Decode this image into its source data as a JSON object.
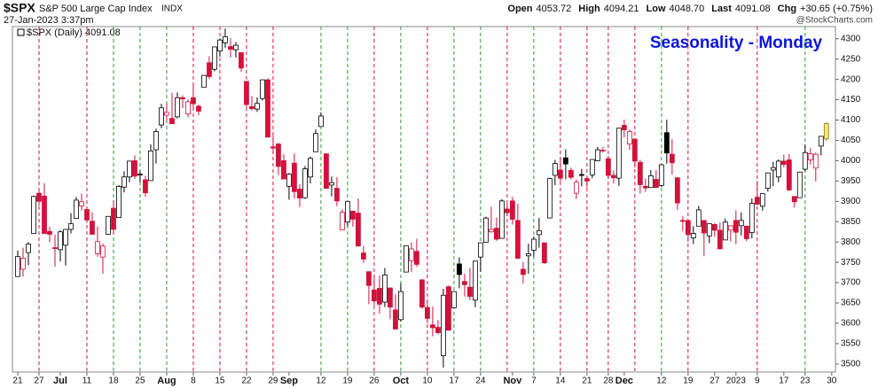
{
  "chart_data": {
    "type": "candlestick",
    "symbol": "$SPX",
    "name": "S&P 500 Large Cap Index",
    "exchange": "INDX",
    "timestamp": "27-Jan-2023 3:37pm",
    "quote": [
      {
        "label": "Open",
        "value": "4053.72"
      },
      {
        "label": "High",
        "value": "4094.21"
      },
      {
        "label": "Low",
        "value": "4048.70"
      },
      {
        "label": "Last",
        "value": "4091.08"
      },
      {
        "label": "Chg",
        "value": "+30.65 (+0.75%)"
      }
    ],
    "credit": "@StockCharts.com",
    "legend": "$SPX (Daily) 4091.08",
    "title": "Seasonality - Monday",
    "title_color": "#0a16d8",
    "up_color": "#000000",
    "down_color": "#d2123c",
    "last_color": "#f3e87a",
    "ylim": [
      3480,
      4330
    ],
    "yticks": [
      3500,
      3550,
      3600,
      3650,
      3700,
      3750,
      3800,
      3850,
      3900,
      3950,
      4000,
      4050,
      4100,
      4150,
      4200,
      4250,
      4300
    ],
    "xlim": [
      -1,
      153.7
    ],
    "xticks": [
      {
        "value": 0,
        "label": "21"
      },
      {
        "value": 4,
        "label": "27"
      },
      {
        "value": 8,
        "label": "Jul"
      },
      {
        "value": 13,
        "label": "11"
      },
      {
        "value": 18,
        "label": "18"
      },
      {
        "value": 23,
        "label": "25"
      },
      {
        "value": 28,
        "label": "Aug"
      },
      {
        "value": 33,
        "label": "8"
      },
      {
        "value": 38,
        "label": "15"
      },
      {
        "value": 43,
        "label": "22"
      },
      {
        "value": 48,
        "label": "29"
      },
      {
        "value": 51,
        "label": "Sep"
      },
      {
        "value": 57,
        "label": "12"
      },
      {
        "value": 62,
        "label": "19"
      },
      {
        "value": 67,
        "label": "26"
      },
      {
        "value": 72,
        "label": "Oct"
      },
      {
        "value": 77,
        "label": "10"
      },
      {
        "value": 82,
        "label": "17"
      },
      {
        "value": 87,
        "label": "24"
      },
      {
        "value": 93,
        "label": "Nov"
      },
      {
        "value": 97,
        "label": "7"
      },
      {
        "value": 102,
        "label": "14"
      },
      {
        "value": 107,
        "label": "21"
      },
      {
        "value": 111,
        "label": "28"
      },
      {
        "value": 114,
        "label": "Dec"
      },
      {
        "value": 121,
        "label": "12"
      },
      {
        "value": 126,
        "label": "19"
      },
      {
        "value": 131,
        "label": "27"
      },
      {
        "value": 135,
        "label": "2023"
      },
      {
        "value": 139,
        "label": "9"
      },
      {
        "value": 144,
        "label": "17"
      },
      {
        "value": 148,
        "label": "23"
      },
      {
        "value": 153,
        "label": "30"
      }
    ],
    "monday_lines": [
      {
        "value": 4,
        "color": "#d2123c"
      },
      {
        "value": 13,
        "color": "#d2123c"
      },
      {
        "value": 18,
        "color": "#2e9a2e"
      },
      {
        "value": 23,
        "color": "#2e9a2e"
      },
      {
        "value": 28,
        "color": "#2e9a2e"
      },
      {
        "value": 33,
        "color": "#d2123c"
      },
      {
        "value": 38,
        "color": "#d2123c"
      },
      {
        "value": 43,
        "color": "#d2123c"
      },
      {
        "value": 48,
        "color": "#d2123c"
      },
      {
        "value": 57,
        "color": "#2e9a2e"
      },
      {
        "value": 62,
        "color": "#2e9a2e"
      },
      {
        "value": 67,
        "color": "#d2123c"
      },
      {
        "value": 72,
        "color": "#2e9a2e"
      },
      {
        "value": 77,
        "color": "#d2123c"
      },
      {
        "value": 82,
        "color": "#2e9a2e"
      },
      {
        "value": 87,
        "color": "#2e9a2e"
      },
      {
        "value": 92,
        "color": "#d2123c"
      },
      {
        "value": 97,
        "color": "#2e9a2e"
      },
      {
        "value": 102,
        "color": "#d2123c"
      },
      {
        "value": 107,
        "color": "#d2123c"
      },
      {
        "value": 111,
        "color": "#d2123c"
      },
      {
        "value": 116,
        "color": "#d2123c"
      },
      {
        "value": 121,
        "color": "#2e9a2e"
      },
      {
        "value": 126,
        "color": "#d2123c"
      },
      {
        "value": 139,
        "color": "#d2123c"
      },
      {
        "value": 148,
        "color": "#2e9a2e"
      }
    ],
    "candles": [
      [
        3715,
        3779,
        3715,
        3764
      ],
      [
        3733,
        3786,
        3715,
        3760
      ],
      [
        3774,
        3800,
        3743,
        3795
      ],
      [
        3821,
        3914,
        3821,
        3912
      ],
      [
        3920,
        3928,
        3889,
        3900
      ],
      [
        3913,
        3945,
        3820,
        3821
      ],
      [
        3826,
        3837,
        3799,
        3819
      ],
      [
        3786,
        3818,
        3739,
        3785
      ],
      [
        3781,
        3829,
        3752,
        3825
      ],
      [
        3792,
        3832,
        3742,
        3831
      ],
      [
        3831,
        3871,
        3821,
        3845
      ],
      [
        3858,
        3911,
        3858,
        3903
      ],
      [
        3889,
        3919,
        3877,
        3899
      ],
      [
        3880,
        3880,
        3847,
        3854
      ],
      [
        3851,
        3873,
        3818,
        3819
      ],
      [
        3771,
        3838,
        3764,
        3801
      ],
      [
        3763,
        3796,
        3722,
        3790
      ],
      [
        3819,
        3863,
        3818,
        3863
      ],
      [
        3883,
        3902,
        3818,
        3831
      ],
      [
        3860,
        3940,
        3860,
        3937
      ],
      [
        3935,
        3974,
        3922,
        3960
      ],
      [
        3960,
        4000,
        3947,
        3999
      ],
      [
        4000,
        4013,
        3955,
        3962
      ],
      [
        3966,
        3975,
        3947,
        3967
      ],
      [
        3953,
        3963,
        3911,
        3921
      ],
      [
        3951,
        4040,
        3951,
        4024
      ],
      [
        4027,
        4079,
        3993,
        4072
      ],
      [
        4088,
        4140,
        4080,
        4130
      ],
      [
        4112,
        4141,
        4096,
        4119
      ],
      [
        4104,
        4167,
        4091,
        4091
      ],
      [
        4108,
        4168,
        4104,
        4155
      ],
      [
        4155,
        4161,
        4129,
        4152
      ],
      [
        4115,
        4151,
        4107,
        4145
      ],
      [
        4155,
        4187,
        4128,
        4140
      ],
      [
        4134,
        4138,
        4112,
        4122
      ],
      [
        4181,
        4211,
        4181,
        4210
      ],
      [
        4241,
        4257,
        4201,
        4207
      ],
      [
        4225,
        4280,
        4220,
        4280
      ],
      [
        4270,
        4301,
        4256,
        4297
      ],
      [
        4290,
        4325,
        4278,
        4305
      ],
      [
        4281,
        4302,
        4254,
        4274
      ],
      [
        4273,
        4292,
        4254,
        4284
      ],
      [
        4266,
        4266,
        4219,
        4228
      ],
      [
        4195,
        4195,
        4129,
        4138
      ],
      [
        4133,
        4159,
        4124,
        4128
      ],
      [
        4127,
        4156,
        4120,
        4141
      ],
      [
        4153,
        4200,
        4148,
        4199
      ],
      [
        4199,
        4203,
        4057,
        4058
      ],
      [
        4034,
        4062,
        4017,
        4031
      ],
      [
        4041,
        4044,
        3965,
        3986
      ],
      [
        4000,
        4016,
        3954,
        3955
      ],
      [
        3937,
        3970,
        3904,
        3967
      ],
      [
        3994,
        4018,
        3907,
        3924
      ],
      [
        3930,
        3942,
        3886,
        3908
      ],
      [
        3909,
        3987,
        3906,
        3980
      ],
      [
        3960,
        4010,
        3944,
        4006
      ],
      [
        4022,
        4077,
        4022,
        4067
      ],
      [
        4084,
        4119,
        4084,
        4110
      ],
      [
        4017,
        4017,
        3932,
        3932
      ],
      [
        3940,
        3961,
        3912,
        3946
      ],
      [
        3932,
        3959,
        3888,
        3901
      ],
      [
        3830,
        3880,
        3837,
        3873
      ],
      [
        3849,
        3900,
        3839,
        3900
      ],
      [
        3876,
        3876,
        3838,
        3856
      ],
      [
        3871,
        3907,
        3789,
        3790
      ],
      [
        3773,
        3790,
        3749,
        3758
      ],
      [
        3727,
        3727,
        3647,
        3693
      ],
      [
        3682,
        3716,
        3644,
        3655
      ],
      [
        3686,
        3717,
        3624,
        3647
      ],
      [
        3652,
        3736,
        3640,
        3719
      ],
      [
        3687,
        3687,
        3610,
        3640
      ],
      [
        3633,
        3671,
        3584,
        3586
      ],
      [
        3609,
        3698,
        3604,
        3678
      ],
      [
        3726,
        3791,
        3726,
        3791
      ],
      [
        3754,
        3799,
        3726,
        3783
      ],
      [
        3777,
        3808,
        3739,
        3745
      ],
      [
        3707,
        3707,
        3636,
        3640
      ],
      [
        3639,
        3654,
        3600,
        3612
      ],
      [
        3596,
        3641,
        3568,
        3589
      ],
      [
        3590,
        3608,
        3573,
        3577
      ],
      [
        3520,
        3685,
        3491,
        3669
      ],
      [
        3690,
        3693,
        3582,
        3583
      ],
      [
        3638,
        3677,
        3638,
        3678
      ],
      [
        3746,
        3762,
        3686,
        3720
      ],
      [
        3703,
        3722,
        3666,
        3695
      ],
      [
        3689,
        3736,
        3657,
        3666
      ],
      [
        3657,
        3752,
        3640,
        3753
      ],
      [
        3763,
        3799,
        3727,
        3798
      ],
      [
        3799,
        3862,
        3799,
        3859
      ],
      [
        3825,
        3887,
        3823,
        3831
      ],
      [
        3834,
        3860,
        3803,
        3807
      ],
      [
        3809,
        3905,
        3808,
        3901
      ],
      [
        3881,
        3894,
        3863,
        3872
      ],
      [
        3901,
        3911,
        3843,
        3856
      ],
      [
        3853,
        3894,
        3758,
        3760
      ],
      [
        3733,
        3751,
        3698,
        3720
      ],
      [
        3766,
        3796,
        3722,
        3771
      ],
      [
        3780,
        3814,
        3764,
        3807
      ],
      [
        3818,
        3859,
        3786,
        3828
      ],
      [
        3798,
        3798,
        3746,
        3749
      ],
      [
        3859,
        3958,
        3859,
        3956
      ],
      [
        3964,
        4002,
        3940,
        3993
      ],
      [
        3977,
        4009,
        3949,
        3957
      ],
      [
        4007,
        4028,
        3954,
        3992
      ],
      [
        3976,
        3983,
        3954,
        3959
      ],
      [
        3920,
        3954,
        3906,
        3947
      ],
      [
        3966,
        3980,
        3937,
        3965
      ],
      [
        3956,
        3962,
        3934,
        3950
      ],
      [
        3965,
        4003,
        3957,
        4003
      ],
      [
        4000,
        4034,
        3999,
        4027
      ],
      [
        4024,
        4034,
        4020,
        4026
      ],
      [
        4005,
        4012,
        3956,
        3964
      ],
      [
        3964,
        3976,
        3944,
        3958
      ],
      [
        3957,
        4080,
        3938,
        4080
      ],
      [
        4087,
        4101,
        4057,
        4076
      ],
      [
        4041,
        4077,
        4027,
        4072
      ],
      [
        4053,
        4053,
        3984,
        3999
      ],
      [
        3996,
        4002,
        3919,
        3941
      ],
      [
        3937,
        3956,
        3923,
        3933
      ],
      [
        3934,
        3977,
        3933,
        3963
      ],
      [
        3954,
        3977,
        3933,
        3934
      ],
      [
        3939,
        3991,
        3935,
        3990
      ],
      [
        4069,
        4101,
        3993,
        4019
      ],
      [
        4016,
        4053,
        3966,
        3995
      ],
      [
        3958,
        3958,
        3879,
        3896
      ],
      [
        3853,
        3864,
        3827,
        3852
      ],
      [
        3853,
        3855,
        3800,
        3818
      ],
      [
        3810,
        3839,
        3795,
        3821
      ],
      [
        3839,
        3889,
        3839,
        3879
      ],
      [
        3853,
        3853,
        3765,
        3822
      ],
      [
        3815,
        3845,
        3797,
        3845
      ],
      [
        3843,
        3846,
        3813,
        3829
      ],
      [
        3829,
        3848,
        3783,
        3783
      ],
      [
        3805,
        3858,
        3805,
        3849
      ],
      [
        3829,
        3840,
        3801,
        3840
      ],
      [
        3853,
        3878,
        3795,
        3824
      ],
      [
        3840,
        3873,
        3816,
        3853
      ],
      [
        3839,
        3839,
        3802,
        3808
      ],
      [
        3823,
        3907,
        3809,
        3895
      ],
      [
        3910,
        3950,
        3890,
        3893
      ],
      [
        3888,
        3919,
        3877,
        3919
      ],
      [
        3932,
        3970,
        3924,
        3970
      ],
      [
        3977,
        3997,
        3937,
        3983
      ],
      [
        3960,
        4003,
        3947,
        3999
      ],
      [
        3999,
        4015,
        3984,
        3991
      ],
      [
        4002,
        4017,
        3925,
        3928
      ],
      [
        3912,
        3912,
        3885,
        3899
      ],
      [
        3909,
        3973,
        3910,
        3972
      ],
      [
        3979,
        4039,
        3974,
        4020
      ],
      [
        4002,
        4031,
        3990,
        4017
      ],
      [
        3982,
        4020,
        3949,
        4016
      ],
      [
        4036,
        4061,
        4013,
        4060
      ],
      [
        4053.72,
        4094.21,
        4048.7,
        4091.08
      ]
    ]
  }
}
